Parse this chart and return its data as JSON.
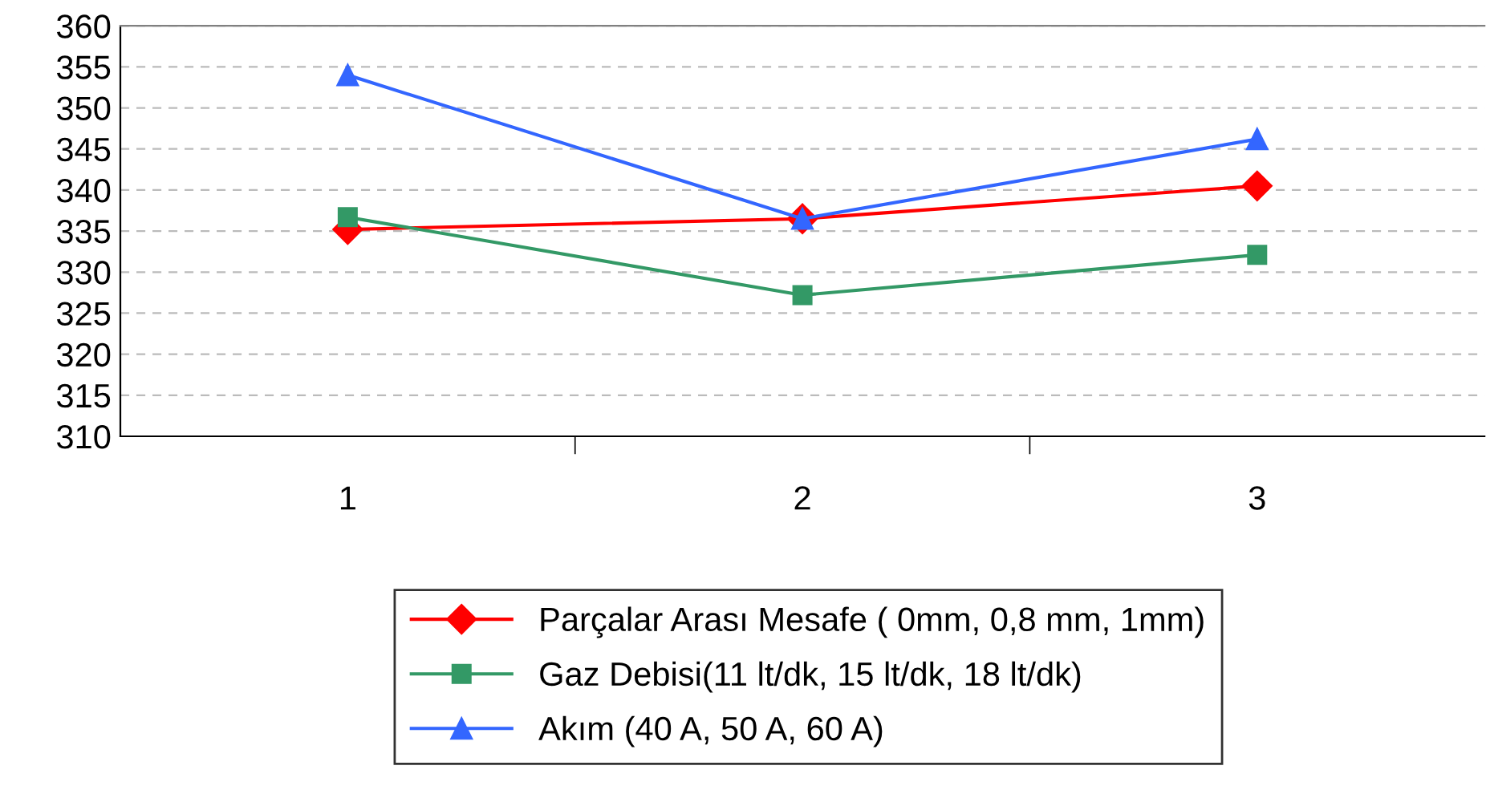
{
  "chart_data": {
    "type": "line",
    "categories": [
      "1",
      "2",
      "3"
    ],
    "series": [
      {
        "name": "Parçalar Arası Mesafe ( 0mm, 0,8 mm, 1mm)",
        "color": "#ff0000",
        "marker": "diamond",
        "values": [
          335.2,
          336.5,
          340.5
        ]
      },
      {
        "name": "Gaz Debisi(11 lt/dk, 15 lt/dk, 18 lt/dk)",
        "color": "#339966",
        "marker": "square",
        "values": [
          336.7,
          327.2,
          332.1
        ]
      },
      {
        "name": "Akım (40 A, 50 A, 60 A)",
        "color": "#3366ff",
        "marker": "triangle",
        "values": [
          354.0,
          336.5,
          346.2
        ]
      }
    ],
    "ylim": [
      310,
      360
    ],
    "yticks": [
      310,
      315,
      320,
      325,
      330,
      335,
      340,
      345,
      350,
      355,
      360
    ],
    "grid": "y",
    "legend": "bottom"
  }
}
